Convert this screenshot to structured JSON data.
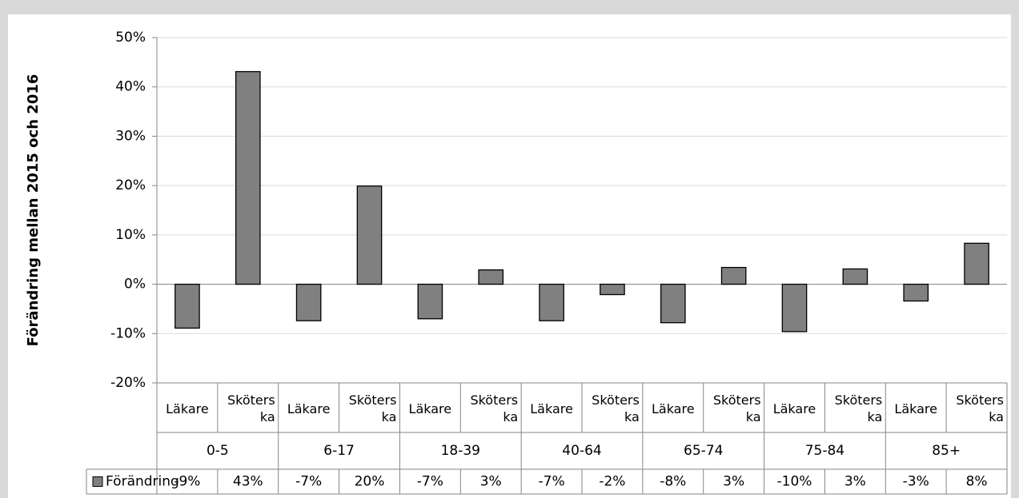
{
  "chart_data": {
    "type": "bar",
    "y_label": "Förändring mellan 2015 och 2016",
    "categories": [
      "Läkare",
      "Sköterska",
      "Läkare",
      "Sköterska",
      "Läkare",
      "Sköterska",
      "Läkare",
      "Sköterska",
      "Läkare",
      "Sköterska",
      "Läkare",
      "Sköterska",
      "Läkare",
      "Sköterska"
    ],
    "groups": [
      "0-5",
      "6-17",
      "18-39",
      "40-64",
      "65-74",
      "75-84",
      "85+"
    ],
    "series": [
      {
        "name": "Förändring",
        "color": "#808080",
        "values": [
          -8.9,
          43.1,
          -7.4,
          19.9,
          -7.0,
          2.9,
          -7.4,
          -2.1,
          -7.8,
          3.4,
          -9.6,
          3.1,
          -3.4,
          8.3
        ],
        "value_labels": [
          "-9%",
          "43%",
          "-7%",
          "20%",
          "-7%",
          "3%",
          "-7%",
          "-2%",
          "-8%",
          "3%",
          "-10%",
          "3%",
          "-3%",
          "8%"
        ]
      }
    ],
    "ylim": [
      -20,
      50
    ],
    "yticks": [
      {
        "value": -20,
        "label": "-20%"
      },
      {
        "value": -10,
        "label": "-10%"
      },
      {
        "value": 0,
        "label": "0%"
      },
      {
        "value": 10,
        "label": "10%"
      },
      {
        "value": 20,
        "label": "20%"
      },
      {
        "value": 30,
        "label": "30%"
      },
      {
        "value": 40,
        "label": "40%"
      },
      {
        "value": 50,
        "label": "50%"
      }
    ],
    "grid": true
  }
}
